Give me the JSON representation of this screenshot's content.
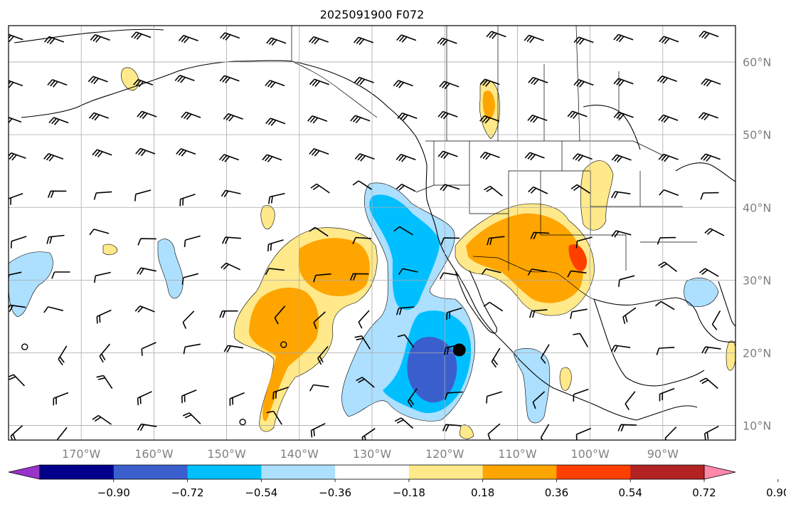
{
  "title": "2025091900 F072",
  "map": {
    "lon_range": [
      -180,
      -80
    ],
    "lat_range": [
      8,
      65
    ],
    "lon_ticks": [
      {
        "value": -170,
        "label": "170°W"
      },
      {
        "value": -160,
        "label": "160°W"
      },
      {
        "value": -150,
        "label": "150°W"
      },
      {
        "value": -140,
        "label": "140°W"
      },
      {
        "value": -130,
        "label": "130°W"
      },
      {
        "value": -120,
        "label": "120°W"
      },
      {
        "value": -110,
        "label": "110°W"
      },
      {
        "value": -100,
        "label": "100°W"
      },
      {
        "value": -90,
        "label": "90°W"
      }
    ],
    "lat_ticks": [
      {
        "value": 10,
        "label": "10°N"
      },
      {
        "value": 20,
        "label": "20°N"
      },
      {
        "value": 30,
        "label": "30°N"
      },
      {
        "value": 40,
        "label": "40°N"
      },
      {
        "value": 50,
        "label": "50°N"
      },
      {
        "value": 60,
        "label": "60°N"
      }
    ],
    "grid": true,
    "marker": {
      "lon": -118,
      "lat": 20.4,
      "color": "#000000"
    }
  },
  "colorbar": {
    "levels": [
      -0.9,
      -0.72,
      -0.54,
      -0.36,
      -0.18,
      0.18,
      0.36,
      0.54,
      0.72,
      0.9
    ],
    "tick_labels": [
      "−0.90",
      "−0.72",
      "−0.54",
      "−0.36",
      "−0.18",
      "0.18",
      "0.36",
      "0.54",
      "0.72",
      "0.90"
    ],
    "colors": [
      "#9933cc",
      "#00008b",
      "#3a5fcd",
      "#00bfff",
      "#addfff",
      "#ffffff",
      "#ffe98a",
      "#ffa500",
      "#ff3f00",
      "#b22222",
      "#ff88aa"
    ],
    "extend": "both"
  },
  "colors": {
    "gridline": "#a9a9a9",
    "coastline": "#000000",
    "tick_label": "#808080"
  }
}
